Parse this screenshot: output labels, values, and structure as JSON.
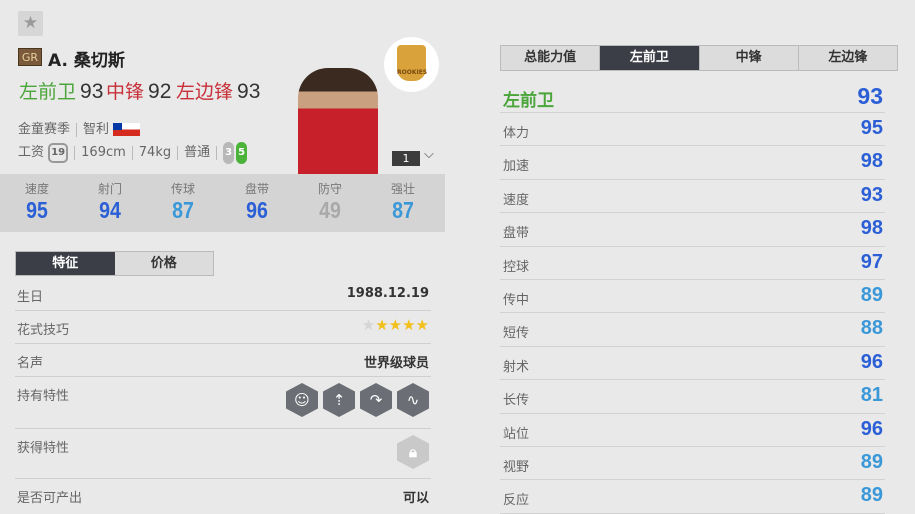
{
  "player": {
    "grade_badge": "GR",
    "name": "A. 桑切斯",
    "positions": [
      {
        "label": "左前卫",
        "value": "93",
        "color": "#4aa53a"
      },
      {
        "label": "中锋",
        "value": "92",
        "color": "#c8303a"
      },
      {
        "label": "左边锋",
        "value": "93",
        "color": "#c8303a"
      }
    ],
    "season": "金童赛季",
    "nation": "智利",
    "salary_label": "工资",
    "salary": "19",
    "height": "169cm",
    "weight": "74kg",
    "body_type": "普通",
    "left_foot": "3",
    "right_foot": "5",
    "badge_text": "ROOKIES",
    "level": "1"
  },
  "colors": {
    "high": "#2b5fd6",
    "mid": "#3a98d8",
    "low": "#a9a9a9"
  },
  "main_stats": [
    {
      "label": "速度",
      "value": "95",
      "tier": "high"
    },
    {
      "label": "射门",
      "value": "94",
      "tier": "high"
    },
    {
      "label": "传球",
      "value": "87",
      "tier": "mid"
    },
    {
      "label": "盘带",
      "value": "96",
      "tier": "high"
    },
    {
      "label": "防守",
      "value": "49",
      "tier": "low"
    },
    {
      "label": "强壮",
      "value": "87",
      "tier": "mid"
    }
  ],
  "info_tabs": [
    {
      "label": "特征",
      "active": true
    },
    {
      "label": "价格",
      "active": false
    }
  ],
  "info": {
    "birthday_label": "生日",
    "birthday": "1988.12.19",
    "skill_label": "花式技巧",
    "skill_stars": 4,
    "skill_max": 5,
    "fame_label": "名声",
    "fame": "世界级球员",
    "traits_label": "持有特性",
    "traits": [
      "head-icon",
      "power-shot-icon",
      "curl-shot-icon",
      "dribble-icon"
    ],
    "earned_label": "获得特性",
    "produce_label": "是否可产出",
    "produce": "可以"
  },
  "right_tabs": [
    {
      "label": "总能力值",
      "active": false
    },
    {
      "label": "左前卫",
      "active": true
    },
    {
      "label": "中锋",
      "active": false
    },
    {
      "label": "左边锋",
      "active": false
    }
  ],
  "right": {
    "position": "左前卫",
    "overall": "93",
    "attrs": [
      {
        "label": "体力",
        "value": "95",
        "tier": "high"
      },
      {
        "label": "加速",
        "value": "98",
        "tier": "high"
      },
      {
        "label": "速度",
        "value": "93",
        "tier": "high"
      },
      {
        "label": "盘带",
        "value": "98",
        "tier": "high"
      },
      {
        "label": "控球",
        "value": "97",
        "tier": "high"
      },
      {
        "label": "传中",
        "value": "89",
        "tier": "mid"
      },
      {
        "label": "短传",
        "value": "88",
        "tier": "mid"
      },
      {
        "label": "射术",
        "value": "96",
        "tier": "high"
      },
      {
        "label": "长传",
        "value": "81",
        "tier": "mid"
      },
      {
        "label": "站位",
        "value": "96",
        "tier": "high"
      },
      {
        "label": "视野",
        "value": "89",
        "tier": "mid"
      },
      {
        "label": "反应",
        "value": "89",
        "tier": "mid"
      }
    ]
  }
}
